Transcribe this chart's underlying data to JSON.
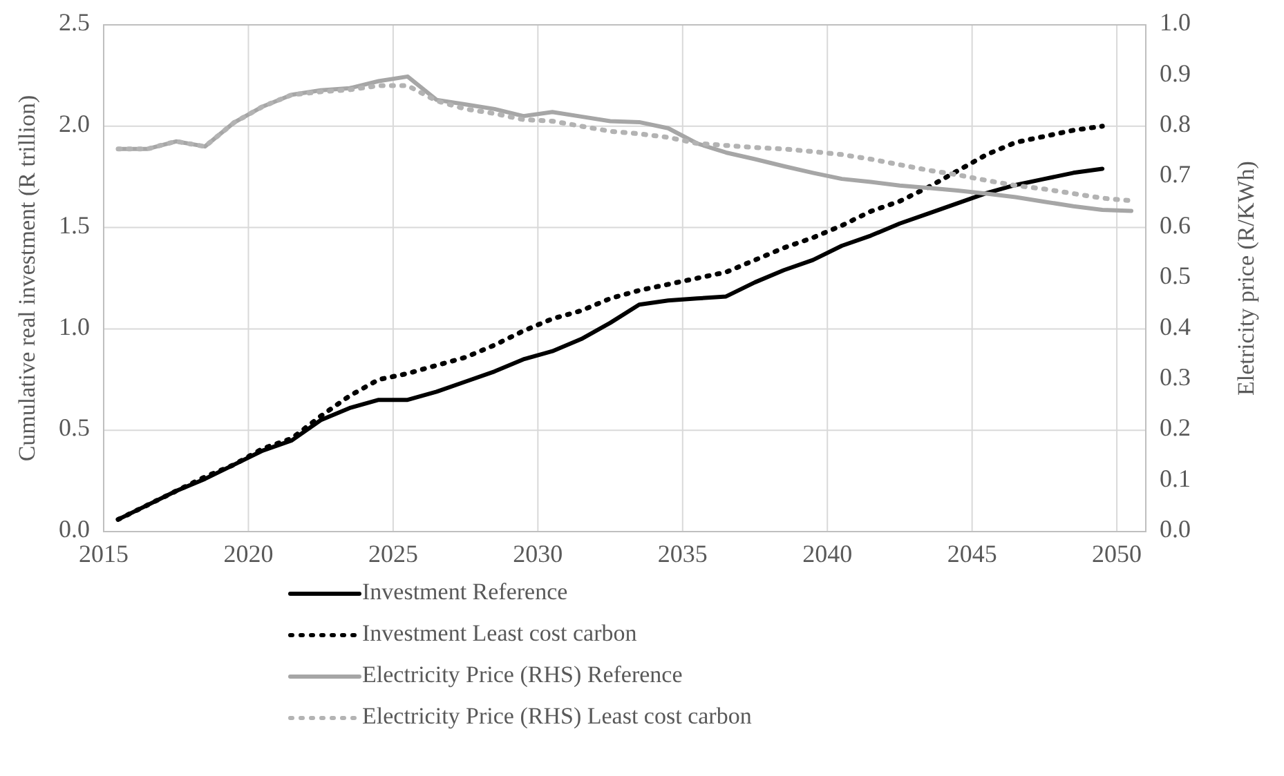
{
  "chart_data": {
    "type": "line",
    "ylabel": "Cumulative real investment (R trillion)",
    "y2label": "Eletricity price (R/KWh)",
    "x": [
      2015.5,
      2016.5,
      2017.5,
      2018.5,
      2019.5,
      2020.5,
      2021.5,
      2022.5,
      2023.5,
      2024.5,
      2025.5,
      2026.5,
      2027.5,
      2028.5,
      2029.5,
      2030.5,
      2031.5,
      2032.5,
      2033.5,
      2034.5,
      2035.5,
      2036.5,
      2037.5,
      2038.5,
      2039.5,
      2040.5,
      2041.5,
      2042.5,
      2043.5,
      2044.5,
      2045.5,
      2046.5,
      2047.5,
      2048.5,
      2049.5,
      2050.5
    ],
    "series": [
      {
        "name": "Investment Reference",
        "color": "#000000",
        "line_style": "solid",
        "values": [
          0.06,
          0.13,
          0.2,
          0.26,
          0.33,
          0.4,
          0.45,
          0.55,
          0.61,
          0.65,
          0.65,
          0.69,
          0.74,
          0.79,
          0.85,
          0.89,
          0.95,
          1.03,
          1.12,
          1.14,
          1.15,
          1.16,
          1.23,
          1.29,
          1.34,
          1.41,
          1.46,
          1.52,
          1.57,
          1.62,
          1.67,
          1.71,
          1.74,
          1.77,
          1.79,
          null
        ]
      },
      {
        "name": "Investment Least cost carbon",
        "color": "#000000",
        "line_style": "dotted",
        "values": [
          0.06,
          0.13,
          0.2,
          0.27,
          0.33,
          0.41,
          0.46,
          0.57,
          0.67,
          0.75,
          0.78,
          0.82,
          0.86,
          0.92,
          0.99,
          1.05,
          1.09,
          1.15,
          1.19,
          1.22,
          1.25,
          1.28,
          1.34,
          1.4,
          1.45,
          1.51,
          1.58,
          1.63,
          1.7,
          1.78,
          1.86,
          1.92,
          1.95,
          1.98,
          2.0,
          null
        ]
      },
      {
        "name": "Electricity Price (RHS) Reference",
        "color": "#a6a6a6",
        "line_style": "solid",
        "axis": "y2",
        "values": [
          0.755,
          0.755,
          0.77,
          0.76,
          0.807,
          0.839,
          0.862,
          0.871,
          0.875,
          0.889,
          0.898,
          0.852,
          0.843,
          0.834,
          0.82,
          0.828,
          0.819,
          0.81,
          0.808,
          0.796,
          0.766,
          0.748,
          0.735,
          0.721,
          0.708,
          0.696,
          0.69,
          0.683,
          0.678,
          0.673,
          0.667,
          0.66,
          0.651,
          0.642,
          0.635,
          0.633
        ]
      },
      {
        "name": "Electricity Price (RHS) Least cost carbon",
        "color": "#b3b3b3",
        "line_style": "dotted",
        "axis": "y2",
        "values": [
          0.755,
          0.755,
          0.77,
          0.76,
          0.807,
          0.839,
          0.862,
          0.868,
          0.872,
          0.88,
          0.88,
          0.85,
          0.834,
          0.825,
          0.813,
          0.81,
          0.8,
          0.79,
          0.785,
          0.778,
          0.766,
          0.762,
          0.758,
          0.755,
          0.75,
          0.744,
          0.735,
          0.724,
          0.713,
          0.704,
          0.693,
          0.683,
          0.676,
          0.667,
          0.658,
          0.653
        ]
      }
    ],
    "xlim": [
      2015,
      2051
    ],
    "xticks": [
      2015,
      2020,
      2025,
      2030,
      2035,
      2040,
      2045,
      2050
    ],
    "ylim": [
      0,
      2.5
    ],
    "yticks": [
      {
        "value": 0,
        "label": "0.0"
      },
      {
        "value": 0.5,
        "label": "0.5"
      },
      {
        "value": 1,
        "label": "1.0"
      },
      {
        "value": 1.5,
        "label": "1.5"
      },
      {
        "value": 2,
        "label": "2.0"
      },
      {
        "value": 2.5,
        "label": "2.5"
      }
    ],
    "y2lim": [
      0,
      1
    ],
    "y2ticks": [
      {
        "value": 0,
        "label": "0.0"
      },
      {
        "value": 0.1,
        "label": "0.1"
      },
      {
        "value": 0.2,
        "label": "0.2"
      },
      {
        "value": 0.3,
        "label": "0.3"
      },
      {
        "value": 0.4,
        "label": "0.4"
      },
      {
        "value": 0.5,
        "label": "0.5"
      },
      {
        "value": 0.6,
        "label": "0.6"
      },
      {
        "value": 0.7,
        "label": "0.7"
      },
      {
        "value": 0.8,
        "label": "0.8"
      },
      {
        "value": 0.9,
        "label": "0.9"
      },
      {
        "value": 1,
        "label": "1.0"
      }
    ],
    "grid": true,
    "legend": "bottom",
    "marker": "none"
  }
}
